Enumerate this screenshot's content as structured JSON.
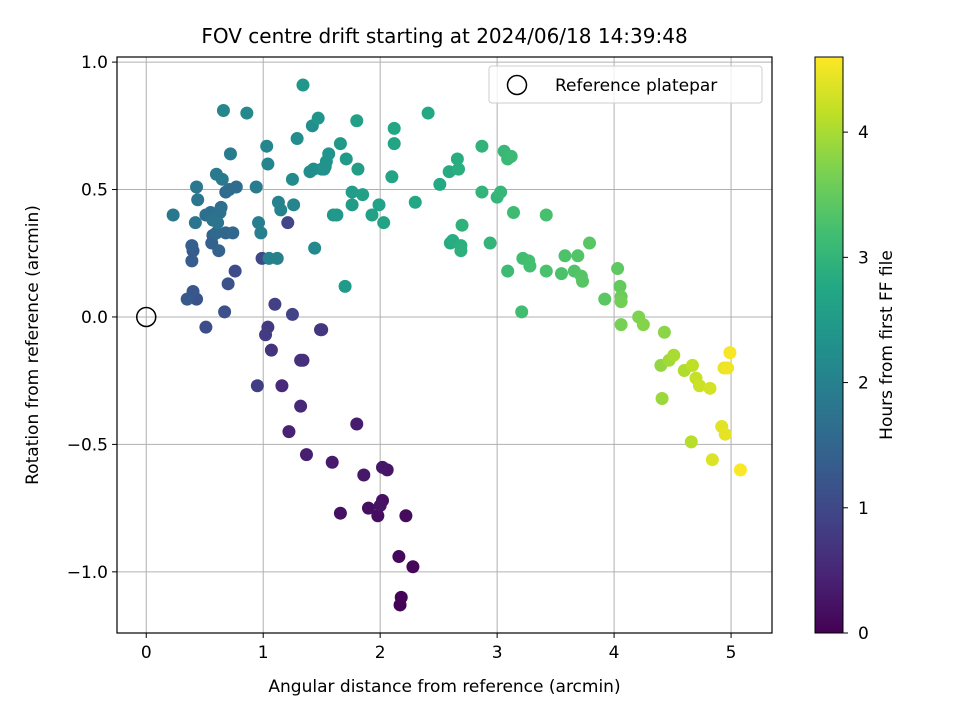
{
  "chart_data": {
    "type": "scatter",
    "title": "FOV centre drift starting at 2024/06/18 14:39:48",
    "xlabel": "Angular distance from reference (arcmin)",
    "ylabel": "Rotation from reference (arcmin)",
    "xlim": [
      -0.25,
      5.35
    ],
    "ylim": [
      -1.24,
      1.02
    ],
    "xticks": [
      0,
      1,
      2,
      3,
      4,
      5
    ],
    "xtick_labels": [
      "0",
      "1",
      "2",
      "3",
      "4",
      "5"
    ],
    "yticks": [
      1.0,
      0.5,
      0.0,
      -0.5,
      -1.0
    ],
    "ytick_labels": [
      "1.0",
      "0.5",
      "0.0",
      "−0.5",
      "−1.0"
    ],
    "grid": true,
    "legend": {
      "placement": "top-right",
      "entries": [
        "Reference platepar"
      ]
    },
    "reference_point": {
      "x": 0.0,
      "y": 0.0,
      "label": "Reference platepar"
    },
    "colorbar": {
      "label": "Hours from first FF file",
      "colormap": "viridis",
      "range": [
        0,
        4.6
      ],
      "ticks": [
        0,
        1,
        2,
        3,
        4
      ],
      "tick_labels": [
        "0",
        "1",
        "2",
        "3",
        "4"
      ]
    },
    "series": [
      {
        "points": [
          [
            2.17,
            -1.13,
            0.02
          ],
          [
            2.18,
            -1.1,
            0.04
          ],
          [
            2.28,
            -0.98,
            0.08
          ],
          [
            2.16,
            -0.94,
            0.1
          ],
          [
            2.22,
            -0.78,
            0.13
          ],
          [
            1.98,
            -0.78,
            0.15
          ],
          [
            1.9,
            -0.75,
            0.17
          ],
          [
            2.02,
            -0.72,
            0.19
          ],
          [
            1.66,
            -0.77,
            0.21
          ],
          [
            2.0,
            -0.74,
            0.23
          ],
          [
            2.06,
            -0.6,
            0.26
          ],
          [
            2.02,
            -0.59,
            0.28
          ],
          [
            1.86,
            -0.62,
            0.3
          ],
          [
            1.59,
            -0.57,
            0.33
          ],
          [
            1.8,
            -0.42,
            0.36
          ],
          [
            1.37,
            -0.54,
            0.4
          ],
          [
            1.22,
            -0.45,
            0.45
          ],
          [
            1.32,
            -0.35,
            0.5
          ],
          [
            1.16,
            -0.27,
            0.55
          ],
          [
            1.34,
            -0.17,
            0.6
          ],
          [
            1.32,
            -0.17,
            0.63
          ],
          [
            1.07,
            -0.13,
            0.67
          ],
          [
            1.49,
            -0.05,
            0.7
          ],
          [
            1.5,
            -0.05,
            0.72
          ],
          [
            1.04,
            -0.04,
            0.76
          ],
          [
            1.02,
            -0.07,
            0.8
          ],
          [
            0.95,
            -0.27,
            0.84
          ],
          [
            1.1,
            0.05,
            0.88
          ],
          [
            1.25,
            0.01,
            0.92
          ],
          [
            1.21,
            0.37,
            0.96
          ],
          [
            0.99,
            0.23,
            1.0
          ],
          [
            0.76,
            0.18,
            1.05
          ],
          [
            0.51,
            -0.04,
            1.08
          ],
          [
            0.67,
            0.02,
            1.12
          ],
          [
            0.7,
            0.13,
            1.16
          ],
          [
            0.43,
            0.07,
            1.2
          ],
          [
            0.4,
            0.1,
            1.24
          ],
          [
            0.35,
            0.07,
            1.28
          ],
          [
            0.4,
            0.26,
            1.32
          ],
          [
            0.39,
            0.22,
            1.35
          ],
          [
            0.39,
            0.28,
            1.38
          ],
          [
            0.56,
            0.29,
            1.41
          ],
          [
            0.57,
            0.32,
            1.45
          ],
          [
            0.62,
            0.26,
            1.48
          ],
          [
            0.68,
            0.33,
            1.51
          ],
          [
            0.74,
            0.33,
            1.54
          ],
          [
            0.6,
            0.33,
            1.57
          ],
          [
            0.68,
            0.49,
            1.6
          ],
          [
            0.71,
            0.5,
            1.62
          ],
          [
            0.77,
            0.51,
            1.64
          ],
          [
            0.64,
            0.43,
            1.66
          ],
          [
            0.55,
            0.41,
            1.68
          ],
          [
            0.51,
            0.4,
            1.7
          ],
          [
            0.63,
            0.41,
            1.72
          ],
          [
            0.57,
            0.38,
            1.74
          ],
          [
            0.61,
            0.37,
            1.76
          ],
          [
            0.42,
            0.37,
            1.78
          ],
          [
            0.44,
            0.46,
            1.8
          ],
          [
            0.43,
            0.51,
            1.82
          ],
          [
            0.23,
            0.4,
            1.84
          ],
          [
            0.6,
            0.56,
            1.86
          ],
          [
            0.65,
            0.54,
            1.88
          ],
          [
            0.72,
            0.64,
            1.9
          ],
          [
            0.94,
            0.51,
            1.92
          ],
          [
            0.96,
            0.37,
            1.94
          ],
          [
            0.98,
            0.33,
            1.96
          ],
          [
            1.05,
            0.23,
            1.98
          ],
          [
            1.12,
            0.23,
            2.0
          ],
          [
            1.13,
            0.45,
            2.02
          ],
          [
            1.15,
            0.42,
            2.04
          ],
          [
            1.26,
            0.44,
            2.06
          ],
          [
            1.04,
            0.6,
            2.08
          ],
          [
            1.03,
            0.67,
            2.1
          ],
          [
            0.66,
            0.81,
            2.12
          ],
          [
            0.86,
            0.8,
            2.14
          ],
          [
            1.44,
            0.27,
            2.16
          ],
          [
            1.25,
            0.54,
            2.18
          ],
          [
            1.29,
            0.7,
            2.2
          ],
          [
            1.4,
            0.57,
            2.22
          ],
          [
            1.43,
            0.58,
            2.24
          ],
          [
            1.42,
            0.75,
            2.26
          ],
          [
            1.5,
            0.58,
            2.28
          ],
          [
            1.52,
            0.58,
            2.3
          ],
          [
            1.53,
            0.59,
            2.32
          ],
          [
            1.54,
            0.61,
            2.34
          ],
          [
            1.56,
            0.64,
            2.36
          ],
          [
            1.47,
            0.78,
            2.38
          ],
          [
            1.34,
            0.91,
            2.4
          ],
          [
            1.6,
            0.4,
            2.42
          ],
          [
            1.63,
            0.4,
            2.44
          ],
          [
            1.66,
            0.68,
            2.46
          ],
          [
            1.71,
            0.62,
            2.48
          ],
          [
            1.7,
            0.12,
            2.5
          ],
          [
            1.76,
            0.44,
            2.52
          ],
          [
            1.76,
            0.49,
            2.54
          ],
          [
            1.81,
            0.58,
            2.56
          ],
          [
            1.8,
            0.77,
            2.58
          ],
          [
            1.85,
            0.48,
            2.6
          ],
          [
            1.93,
            0.4,
            2.62
          ],
          [
            1.99,
            0.44,
            2.64
          ],
          [
            2.03,
            0.37,
            2.66
          ],
          [
            2.1,
            0.55,
            2.68
          ],
          [
            2.12,
            0.68,
            2.7
          ],
          [
            2.12,
            0.74,
            2.72
          ],
          [
            2.3,
            0.45,
            2.74
          ],
          [
            2.41,
            0.8,
            2.76
          ],
          [
            2.51,
            0.52,
            2.78
          ],
          [
            2.59,
            0.57,
            2.8
          ],
          [
            2.6,
            0.29,
            2.82
          ],
          [
            2.62,
            0.3,
            2.84
          ],
          [
            2.66,
            0.62,
            2.86
          ],
          [
            2.67,
            0.58,
            2.88
          ],
          [
            2.69,
            0.28,
            2.9
          ],
          [
            2.69,
            0.26,
            2.92
          ],
          [
            2.7,
            0.36,
            2.94
          ],
          [
            2.87,
            0.67,
            2.96
          ],
          [
            2.87,
            0.49,
            2.98
          ],
          [
            2.94,
            0.29,
            3.0
          ],
          [
            3.0,
            0.47,
            3.02
          ],
          [
            3.03,
            0.49,
            3.04
          ],
          [
            3.06,
            0.65,
            3.06
          ],
          [
            3.09,
            0.62,
            3.08
          ],
          [
            3.12,
            0.63,
            3.1
          ],
          [
            3.09,
            0.18,
            3.12
          ],
          [
            3.14,
            0.41,
            3.14
          ],
          [
            3.22,
            0.23,
            3.16
          ],
          [
            3.21,
            0.02,
            3.18
          ],
          [
            3.27,
            0.22,
            3.2
          ],
          [
            3.28,
            0.2,
            3.22
          ],
          [
            3.42,
            0.4,
            3.24
          ],
          [
            3.42,
            0.18,
            3.26
          ],
          [
            3.55,
            0.17,
            3.28
          ],
          [
            3.58,
            0.24,
            3.3
          ],
          [
            3.66,
            0.18,
            3.32
          ],
          [
            3.69,
            0.24,
            3.34
          ],
          [
            3.72,
            0.16,
            3.36
          ],
          [
            3.73,
            0.14,
            3.38
          ],
          [
            3.79,
            0.29,
            3.4
          ],
          [
            3.92,
            0.07,
            3.42
          ],
          [
            4.03,
            0.19,
            3.44
          ],
          [
            4.05,
            0.12,
            3.5
          ],
          [
            4.06,
            0.08,
            3.55
          ],
          [
            4.06,
            0.06,
            3.6
          ],
          [
            4.06,
            -0.03,
            3.65
          ],
          [
            4.21,
            0.0,
            3.7
          ],
          [
            4.25,
            -0.03,
            3.75
          ],
          [
            4.43,
            -0.06,
            3.8
          ],
          [
            4.4,
            -0.19,
            3.85
          ],
          [
            4.41,
            -0.32,
            3.9
          ],
          [
            4.47,
            -0.17,
            3.95
          ],
          [
            4.51,
            -0.15,
            4.0
          ],
          [
            4.6,
            -0.21,
            4.05
          ],
          [
            4.66,
            -0.49,
            4.1
          ],
          [
            4.67,
            -0.19,
            4.15
          ],
          [
            4.7,
            -0.24,
            4.2
          ],
          [
            4.73,
            -0.27,
            4.25
          ],
          [
            4.82,
            -0.28,
            4.3
          ],
          [
            4.84,
            -0.56,
            4.35
          ],
          [
            4.92,
            -0.43,
            4.4
          ],
          [
            4.95,
            -0.46,
            4.42
          ],
          [
            4.94,
            -0.2,
            4.45
          ],
          [
            4.97,
            -0.2,
            4.5
          ],
          [
            4.99,
            -0.14,
            4.55
          ],
          [
            5.08,
            -0.6,
            4.58
          ]
        ]
      }
    ]
  }
}
